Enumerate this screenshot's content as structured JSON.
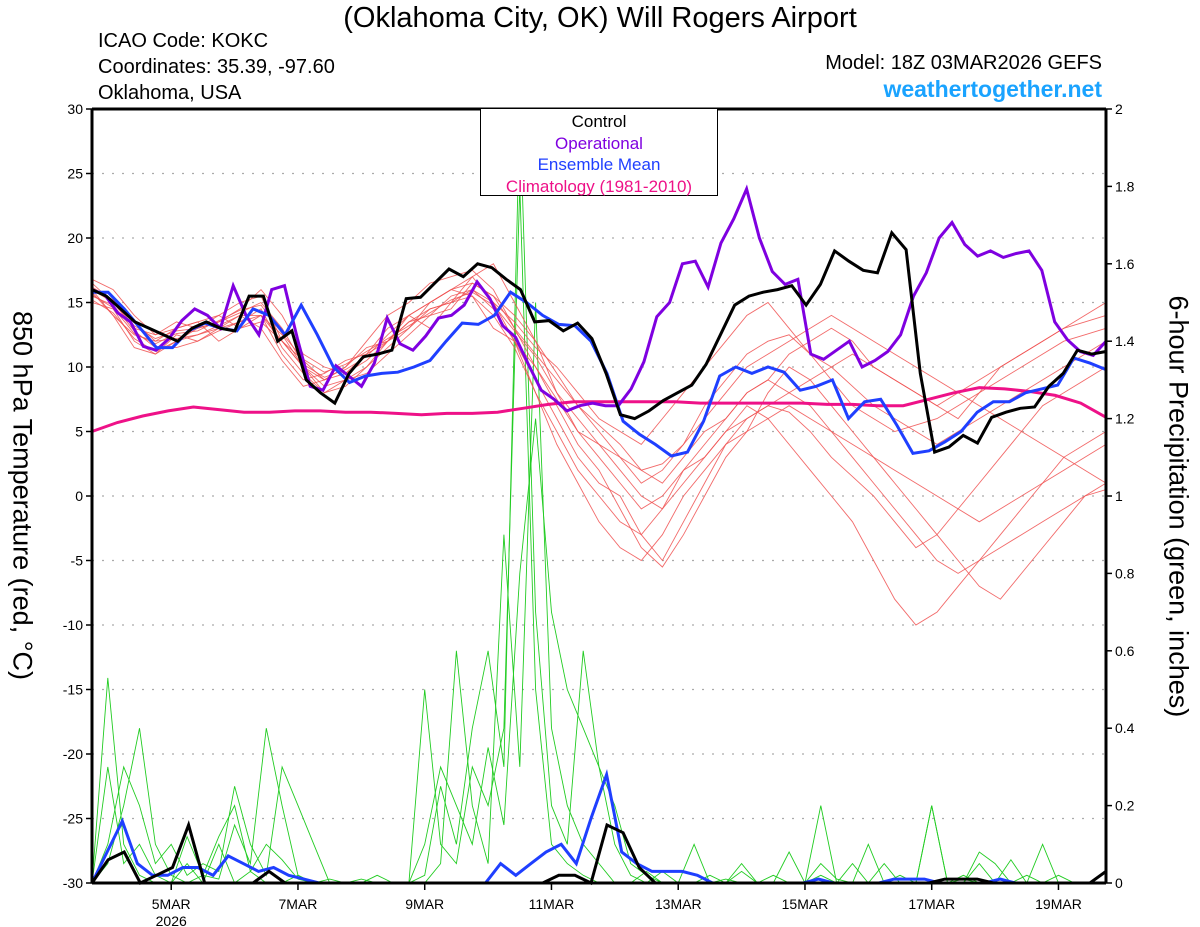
{
  "header": {
    "title": "(Oklahoma City, OK) Will Rogers Airport",
    "icao": "ICAO Code: KOKC",
    "coordinates": "Coordinates: 35.39, -97.60",
    "region": "Oklahoma, USA",
    "model": "Model: 18Z 03MAR2026 GEFS",
    "site": "weathertogether.net"
  },
  "legend": {
    "control": "Control",
    "operational": "Operational",
    "mean": "Ensemble Mean",
    "climatology": "Climatology (1981-2010)"
  },
  "colors": {
    "control": "#000000",
    "operational": "#7f00e0",
    "mean": "#1f3fff",
    "climatology": "#ee1188",
    "temp_members": "#f05050",
    "precip_members": "#22cc22",
    "site": "#1aa3ff"
  },
  "chart_data": {
    "type": "line",
    "title": "(Oklahoma City, OK) Will Rogers Airport",
    "xlabel": "",
    "ylabel": "850 hPa Temperature (red, °C)",
    "y2label": "6-hour Precipitation (green, inches)",
    "x_units": "day of March 2026 (00Z = whole day)",
    "xlim": [
      3.75,
      19.75
    ],
    "ylim": [
      -30,
      30
    ],
    "y2lim": [
      0,
      2
    ],
    "x_step_days": 0.25,
    "x_ticks": [
      {
        "value": 5,
        "label": "5MAR",
        "sublabel": "2026"
      },
      {
        "value": 7,
        "label": "7MAR"
      },
      {
        "value": 9,
        "label": "9MAR"
      },
      {
        "value": 11,
        "label": "11MAR"
      },
      {
        "value": 13,
        "label": "13MAR"
      },
      {
        "value": 15,
        "label": "15MAR"
      },
      {
        "value": 17,
        "label": "17MAR"
      },
      {
        "value": 19,
        "label": "19MAR"
      }
    ],
    "y_ticks": [
      "30",
      "25",
      "20",
      "15",
      "10",
      "5",
      "0",
      "-5",
      "-10",
      "-15",
      "-20",
      "-25",
      "-30"
    ],
    "y2_ticks": [
      "2",
      "1.8",
      "1.6",
      "1.4",
      "1.2",
      "1",
      "0.8",
      "0.6",
      "0.4",
      "0.2",
      "0"
    ],
    "grid": "dotted horizontal",
    "legend_position": "top-center",
    "temperature": {
      "control": [
        16,
        15.5,
        14.5,
        13.5,
        13,
        12.5,
        12,
        13,
        13.5,
        13,
        12.8,
        15.5,
        15.5,
        12,
        12.8,
        9,
        8,
        7.2,
        9.5,
        10.8,
        11,
        11.3,
        15.3,
        15.4,
        16.5,
        17.6,
        17,
        18,
        17.7,
        16.8,
        16,
        13.5,
        13.6,
        12.8,
        13.4,
        12.2,
        9.5,
        6.3,
        6,
        6.6,
        7.4,
        8,
        8.6,
        10.2,
        12.5,
        14.8,
        15.5,
        15.8,
        16,
        16.3,
        14.8,
        16.4,
        19,
        18.2,
        17.5,
        17.3,
        20.4,
        19.1,
        9.5,
        3.4,
        3.8,
        4.7,
        4.1,
        6.1,
        6.5,
        6.8,
        6.9,
        8.5,
        9.5,
        11.3,
        11,
        11.2
      ],
      "operational": [
        16,
        15.6,
        14.2,
        13.5,
        11.6,
        11.3,
        12.2,
        13.6,
        14.5,
        14,
        13,
        16.3,
        14,
        12.5,
        16,
        16.3,
        12.2,
        8.5,
        8.2,
        10.1,
        9.3,
        8.5,
        10.3,
        13.8,
        11.8,
        11.3,
        12.4,
        13.8,
        14,
        14.8,
        16.6,
        15.3,
        13.2,
        12.3,
        10.2,
        8.2,
        7.5,
        6.6,
        7,
        7.2,
        7,
        7,
        8.3,
        10.4,
        13.9,
        15,
        18,
        18.2,
        16.2,
        19.6,
        21.5,
        23.8,
        20,
        17.4,
        16.4,
        16.8,
        11,
        10.6,
        11.3,
        12,
        10,
        10.5,
        11.2,
        12.5,
        15.5,
        17.3,
        20,
        21.2,
        19.5,
        18.6,
        19,
        18.5,
        18.8,
        19,
        17.5,
        13.5,
        12.1,
        11.2,
        10.9,
        12
      ],
      "mean": [
        15.8,
        15.8,
        14.5,
        13,
        11.5,
        11.5,
        12.8,
        13.4,
        13,
        12.8,
        14.5,
        14,
        12.5,
        14.8,
        12.5,
        10,
        8.8,
        9.3,
        9.5,
        9.6,
        10,
        10.5,
        12,
        13.4,
        13.3,
        14,
        15.8,
        15,
        14,
        13.3,
        13.2,
        12,
        9.5,
        5.8,
        4.8,
        4,
        3.1,
        3.4,
        5.8,
        9.3,
        10,
        9.5,
        10,
        9.6,
        8.2,
        8.5,
        9,
        6,
        7.3,
        7.5,
        5.5,
        3.3,
        3.5,
        4.2,
        5,
        6.5,
        7.3,
        7.3,
        8,
        8.3,
        8.6,
        10.7,
        10.3,
        9.8
      ],
      "climatology": [
        5,
        5.7,
        6.2,
        6.6,
        6.9,
        6.7,
        6.5,
        6.5,
        6.6,
        6.6,
        6.5,
        6.5,
        6.4,
        6.3,
        6.4,
        6.4,
        6.5,
        6.8,
        7.1,
        7.3,
        7.3,
        7.3,
        7.3,
        7.3,
        7.2,
        7.2,
        7.2,
        7.2,
        7.2,
        7.1,
        7.1,
        7,
        7,
        7.5,
        8,
        8.4,
        8.3,
        8.1,
        7.8,
        7.2,
        6.1
      ]
    },
    "precipitation": {
      "control": [
        0,
        0.06,
        0.08,
        0,
        0.02,
        0.04,
        0.15,
        0,
        0,
        0,
        0,
        0.03,
        0,
        0,
        0,
        0,
        0,
        0,
        0,
        0,
        0,
        0,
        0,
        0,
        0,
        0,
        0,
        0,
        0,
        0.02,
        0.02,
        0,
        0.15,
        0.13,
        0.04,
        0,
        0,
        0,
        0,
        0,
        0,
        0,
        0,
        0,
        0,
        0,
        0,
        0,
        0,
        0,
        0,
        0,
        0,
        0.01,
        0.01,
        0.01,
        0,
        0,
        0,
        0,
        0,
        0,
        0,
        0.03
      ],
      "mean": [
        0,
        0.08,
        0.16,
        0.05,
        0.02,
        0.02,
        0.04,
        0.04,
        0.02,
        0.07,
        0.05,
        0.03,
        0.04,
        0.02,
        0.01,
        0,
        0,
        0,
        0,
        0,
        0,
        0,
        0,
        0,
        0,
        0,
        0,
        0.05,
        0.02,
        0.05,
        0.08,
        0.1,
        0.05,
        0.17,
        0.28,
        0.08,
        0.05,
        0.03,
        0.03,
        0.03,
        0.02,
        0,
        0,
        0,
        0,
        0,
        0,
        0,
        0.01,
        0,
        0,
        0,
        0,
        0.01,
        0.01,
        0.01,
        0,
        0,
        0,
        0,
        0.01,
        0,
        0,
        0,
        0,
        0,
        0,
        0
      ]
    },
    "temp_members": [
      [
        16,
        14,
        12.5,
        12,
        13,
        13.5,
        12,
        13,
        14,
        11,
        9,
        9.5,
        10.5,
        11,
        13,
        14,
        15,
        16,
        15.5,
        13,
        12,
        9,
        6,
        3,
        1,
        0,
        -3,
        -5,
        -2,
        1,
        4,
        6,
        7,
        6.5,
        5,
        3,
        1.5,
        0,
        -2,
        -4,
        -3,
        -1,
        1,
        3,
        5,
        7,
        8,
        9,
        10
      ],
      [
        16.5,
        15,
        13,
        12.5,
        13.5,
        13,
        14,
        15,
        15.5,
        12,
        10,
        8,
        9,
        10,
        12,
        13.5,
        14.5,
        15,
        16,
        14.5,
        12,
        10,
        7,
        4,
        2,
        -1,
        -4,
        -5.5,
        -3,
        0,
        3,
        5,
        8,
        10,
        9,
        7,
        5,
        3,
        1,
        -1,
        -3,
        -5,
        -7,
        -8,
        -6,
        -4,
        -2,
        0,
        1
      ],
      [
        15,
        14.5,
        12,
        11,
        12.5,
        12,
        13,
        14,
        13,
        10.5,
        8.5,
        9,
        10,
        12,
        14,
        15,
        16.5,
        17,
        17.5,
        16,
        13,
        11,
        9,
        7,
        5,
        3,
        2,
        1,
        3,
        5,
        6,
        8,
        9,
        11,
        12,
        13,
        12,
        10,
        9,
        8,
        7,
        6,
        8,
        10,
        11,
        12,
        13,
        13.5,
        14
      ],
      [
        15.8,
        14,
        11.5,
        11,
        12,
        13,
        13.5,
        14.5,
        16,
        14,
        11,
        10,
        9.5,
        11,
        12,
        14,
        13,
        15,
        17,
        18,
        15,
        12,
        8,
        5,
        4,
        2,
        0,
        -1,
        1,
        3,
        5,
        7,
        6,
        4,
        2,
        0,
        -2,
        -5,
        -8,
        -10,
        -9,
        -7,
        -5,
        -3,
        -1,
        1,
        3,
        4,
        5
      ],
      [
        16.2,
        15.2,
        13.5,
        12,
        12.2,
        12.5,
        13,
        13.5,
        14,
        12.5,
        10,
        8.5,
        9,
        9.5,
        11,
        12.5,
        14,
        15.5,
        16,
        15,
        13.5,
        11.5,
        10,
        8,
        6,
        5,
        4,
        6,
        8,
        10,
        12,
        14,
        15,
        13,
        11,
        9,
        7,
        6,
        5,
        5.5,
        6,
        7,
        8,
        9,
        10,
        11,
        12,
        12.5,
        13
      ],
      [
        15.5,
        14.8,
        12.8,
        11.5,
        11.5,
        12,
        12.8,
        13.5,
        14.5,
        11.5,
        9.5,
        8,
        8.5,
        10,
        11.5,
        13,
        15,
        16,
        17,
        15,
        12,
        8,
        4,
        1,
        -2,
        -4,
        -5,
        -3,
        0,
        2,
        4,
        5,
        6,
        7,
        6,
        5,
        4,
        3,
        2,
        1,
        0,
        -1,
        -2,
        -1,
        0,
        1,
        2,
        3,
        4
      ],
      [
        16.8,
        16,
        14,
        12.5,
        13,
        13.5,
        14,
        13,
        13.5,
        12,
        10.5,
        9,
        10,
        11.5,
        12,
        13.5,
        14,
        14.5,
        16.5,
        15.5,
        14,
        12,
        9.5,
        7,
        5.5,
        4,
        2,
        2.5,
        4,
        7,
        9,
        11,
        12,
        12.5,
        11,
        10,
        8.5,
        7,
        6,
        5,
        4,
        5,
        6,
        7,
        8,
        9,
        10,
        11,
        12
      ],
      [
        15.2,
        14.2,
        12.2,
        11.2,
        12,
        12.5,
        13.2,
        14,
        14,
        12,
        10,
        9,
        9.5,
        10.5,
        12,
        13,
        14.5,
        15,
        15.5,
        14,
        11.5,
        8,
        5,
        2,
        0,
        -2,
        -3,
        -1,
        2,
        4,
        6,
        8,
        9,
        8,
        7,
        5,
        3,
        1,
        -1,
        -3,
        -5,
        -6,
        -5,
        -4,
        -3,
        -2,
        -1,
        0,
        0.5
      ],
      [
        16,
        15,
        13.2,
        12.2,
        12.8,
        13,
        13.5,
        14.2,
        15,
        13,
        10.2,
        9.2,
        9.8,
        10.8,
        12.5,
        14,
        15,
        16,
        16.5,
        15.5,
        13,
        10,
        7.5,
        5,
        3,
        1,
        -1,
        0,
        2,
        3,
        5,
        6,
        7,
        8,
        9,
        10,
        11,
        10,
        9,
        8,
        7,
        8,
        9,
        10,
        11,
        12,
        13,
        14,
        15
      ],
      [
        15.6,
        14.6,
        12.6,
        11.8,
        12.6,
        12.8,
        13.6,
        14.4,
        14.8,
        12.6,
        10.6,
        9.6,
        10.2,
        11.2,
        12.2,
        13.2,
        14.2,
        15.2,
        15.8,
        14.8,
        12.8,
        10.8,
        8,
        6,
        4,
        3,
        1,
        2,
        4,
        6,
        8,
        10,
        11,
        12,
        13,
        14,
        13,
        12,
        11,
        10,
        9,
        8,
        7,
        6,
        5,
        4,
        3,
        2,
        1
      ]
    ],
    "precip_members": [
      [
        0,
        0.53,
        0.1,
        0.02,
        0,
        0,
        0.05,
        0,
        0.1,
        0,
        0.03,
        0,
        0,
        0.02,
        0,
        0.01,
        0,
        0,
        0,
        0,
        0,
        0.5,
        0.1,
        0.05,
        0.3,
        0.2,
        0.4,
        1.8,
        0.5,
        0.1,
        0.05,
        0.02,
        0,
        0,
        0,
        0.03,
        0,
        0,
        0.1,
        0,
        0,
        0,
        0,
        0.02,
        0,
        0,
        0.2,
        0,
        0,
        0,
        0.05,
        0,
        0,
        0.2,
        0,
        0,
        0.05,
        0,
        0,
        0,
        0.1,
        0,
        0,
        0,
        0
      ],
      [
        0,
        0.1,
        0.3,
        0.2,
        0.05,
        0.1,
        0.02,
        0.05,
        0.03,
        0.25,
        0.1,
        0.02,
        0.3,
        0.2,
        0.1,
        0,
        0,
        0,
        0.02,
        0,
        0,
        0.02,
        0.25,
        0.1,
        0.4,
        0.6,
        0.3,
        2.0,
        0.7,
        0.2,
        0.1,
        0.6,
        0.3,
        0.1,
        0.02,
        0,
        0,
        0,
        0,
        0.02,
        0,
        0.05,
        0,
        0,
        0,
        0,
        0.05,
        0.01,
        0,
        0,
        0,
        0.02,
        0,
        0,
        0,
        0,
        0.08,
        0.05,
        0,
        0,
        0,
        0.02,
        0,
        0,
        0.03
      ],
      [
        0,
        0.3,
        0.05,
        0.1,
        0.02,
        0,
        0.12,
        0.02,
        0.01,
        0.15,
        0.05,
        0.4,
        0.2,
        0.02,
        0,
        0,
        0,
        0,
        0,
        0,
        0,
        0,
        0.05,
        0.6,
        0.2,
        0.05,
        0.9,
        0.3,
        1.5,
        0.4,
        0.2,
        0.1,
        0.05,
        0,
        0,
        0,
        0.03,
        0,
        0,
        0,
        0.01,
        0,
        0,
        0,
        0.08,
        0,
        0,
        0,
        0.05,
        0,
        0,
        0,
        0,
        0.2,
        0,
        0.01,
        0,
        0,
        0,
        0.02,
        0,
        0,
        0,
        0,
        0
      ],
      [
        0,
        0.05,
        0.2,
        0.4,
        0.1,
        0.02,
        0,
        0.02,
        0.12,
        0.2,
        0.03,
        0.1,
        0.06,
        0.01,
        0,
        0,
        0,
        0.01,
        0,
        0,
        0,
        0.1,
        0.3,
        0.2,
        0.1,
        0.35,
        0.15,
        0.8,
        1.2,
        0.7,
        0.5,
        0.4,
        0.3,
        0.2,
        0.05,
        0.02,
        0,
        0,
        0,
        0,
        0,
        0.03,
        0,
        0,
        0,
        0,
        0.02,
        0,
        0,
        0.1,
        0,
        0,
        0,
        0,
        0,
        0.02,
        0,
        0,
        0.06,
        0,
        0,
        0,
        0,
        0,
        0
      ]
    ]
  }
}
